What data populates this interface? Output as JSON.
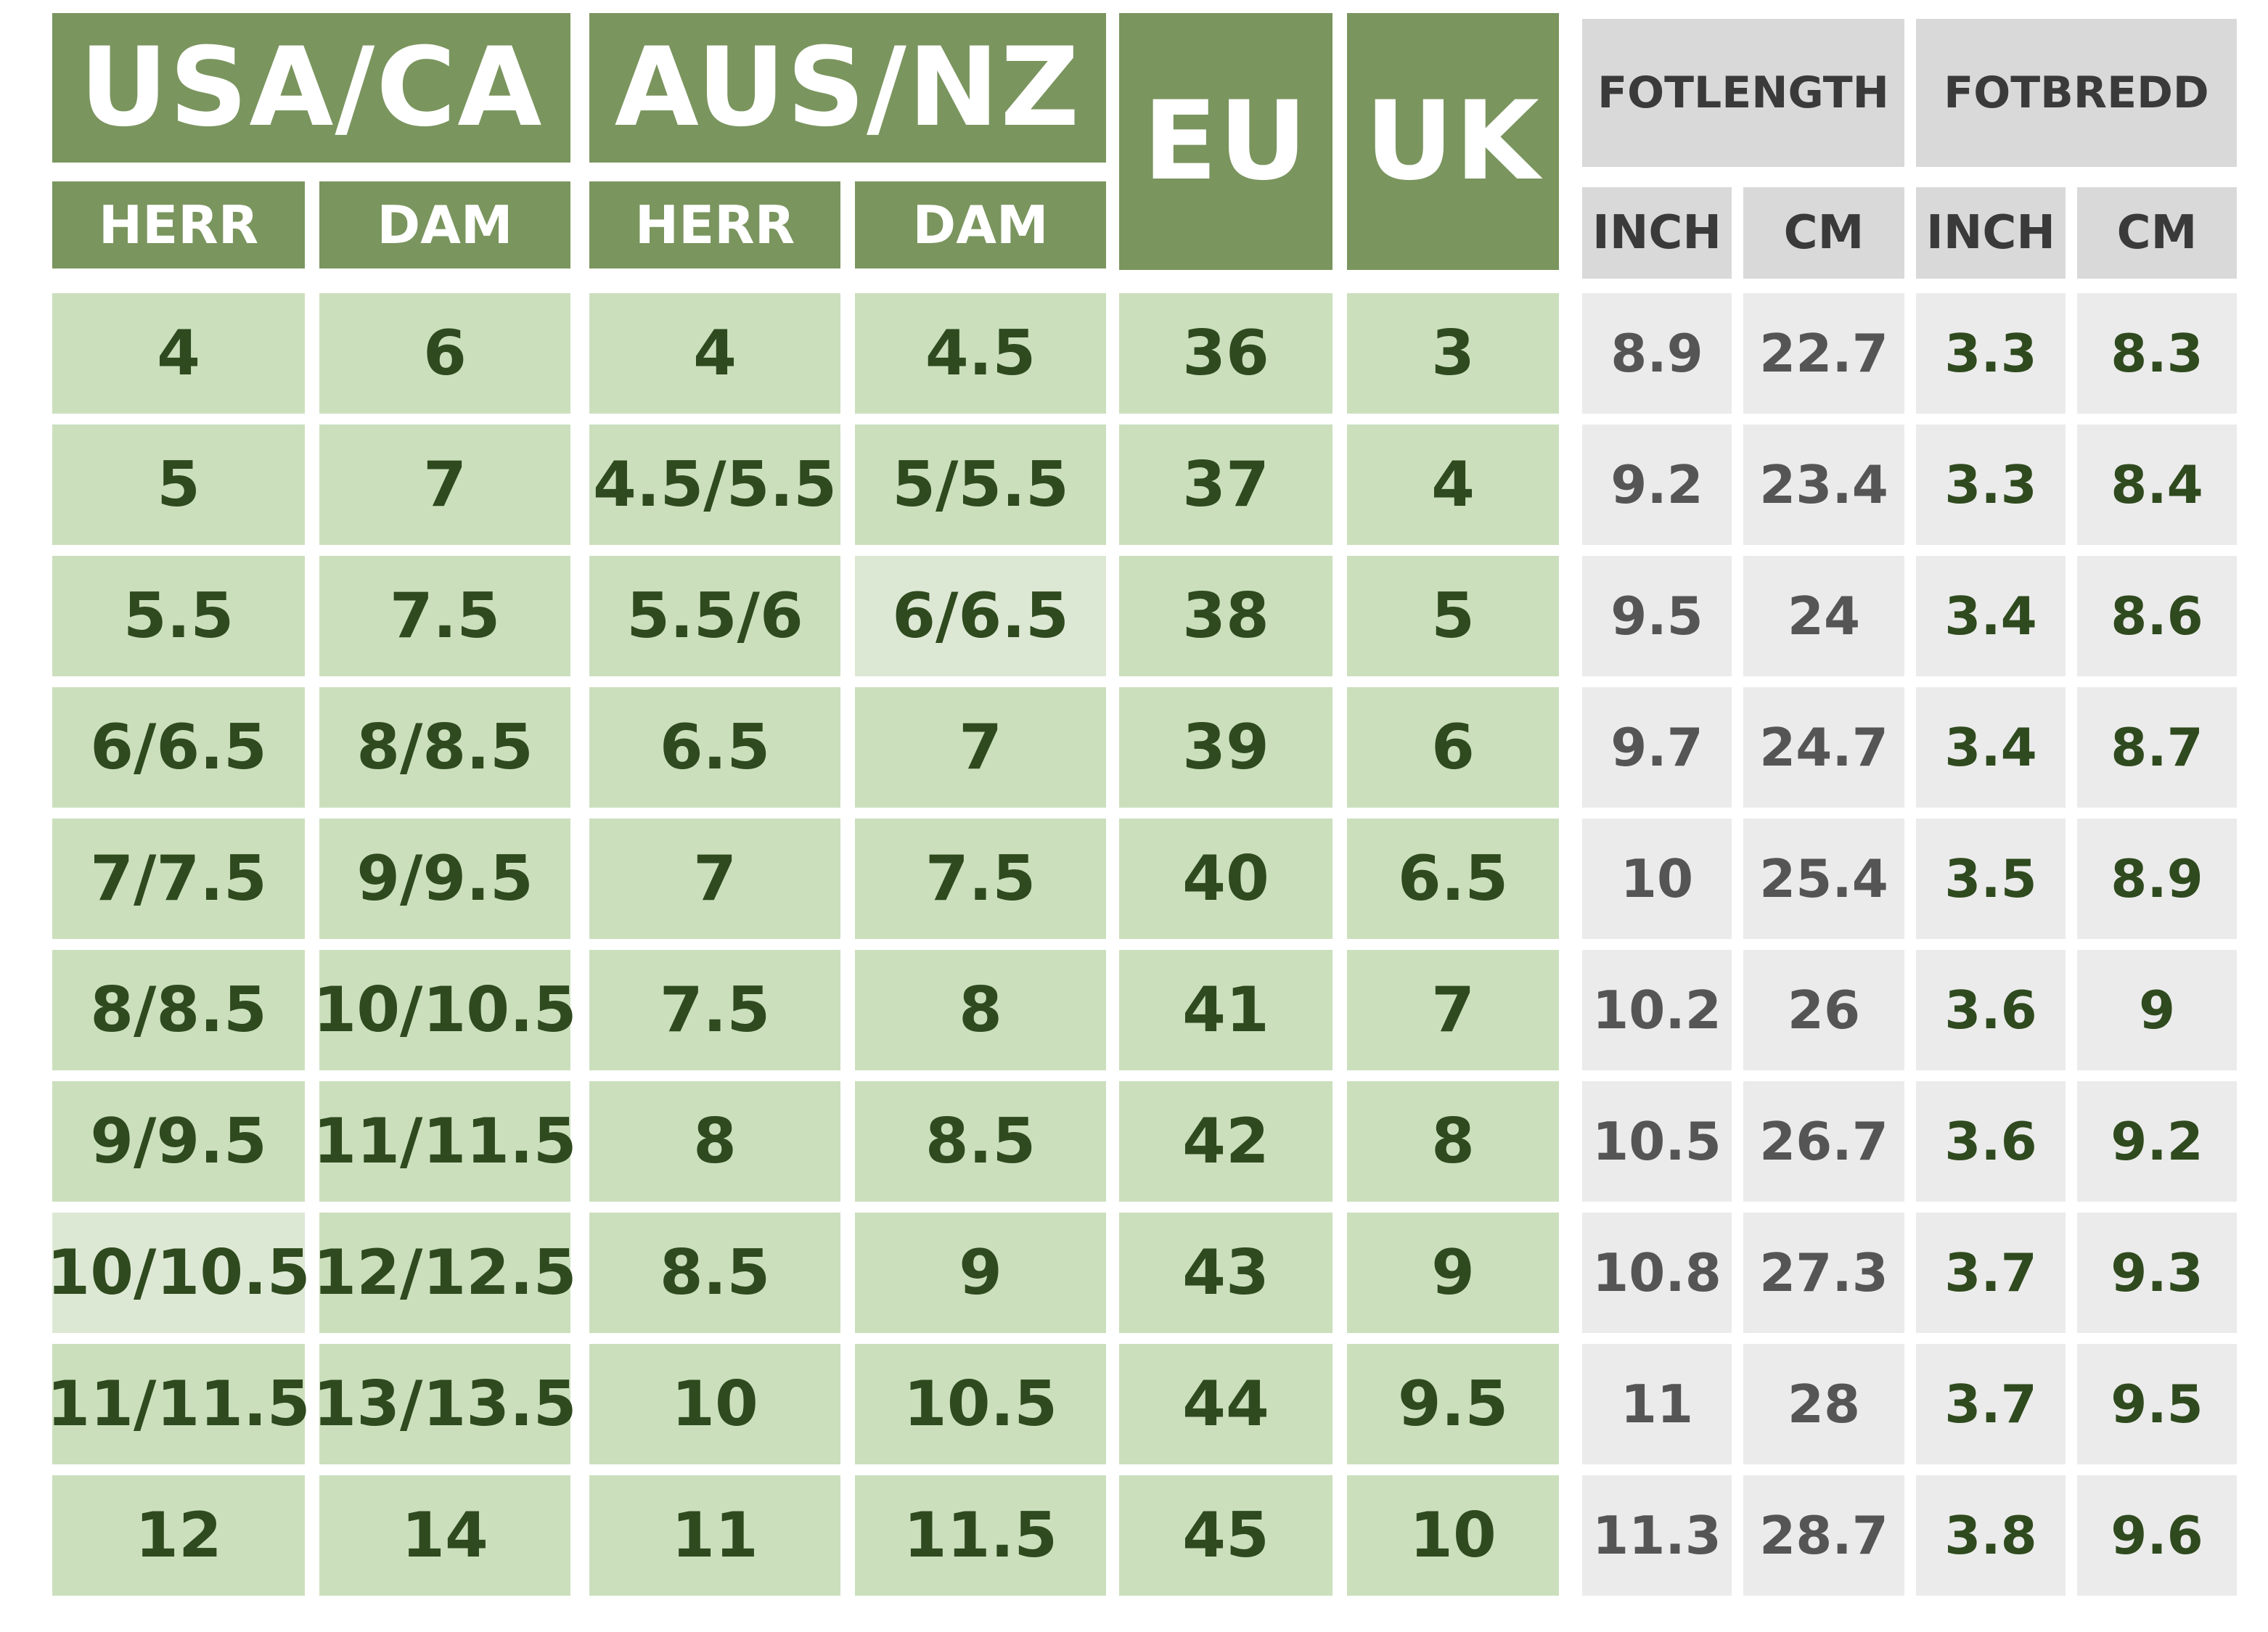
{
  "headers": {
    "usa_ca": "USA/CA",
    "aus_nz": "AUS/NZ",
    "eu": "EU",
    "uk": "UK",
    "fotlength": "FOTLENGTH",
    "fotbredd": "FOTBREDD",
    "herr": "HERR",
    "dam": "DAM",
    "inch": "INCH",
    "cm": "CM"
  },
  "colors": {
    "header_green": "#7a955e",
    "cell_green": "#cbdfbd",
    "text_green": "#2f4a1e",
    "header_gray": "#d9d9d9",
    "cell_gray": "#ebebeb"
  },
  "rows": [
    {
      "usa_herr": "4",
      "usa_dam": "6",
      "aus_herr": "4",
      "aus_dam": "4.5",
      "eu": "36",
      "uk": "3",
      "len_inch": "8.9",
      "len_cm": "22.7",
      "width_inch": "3.3",
      "width_cm": "8.3"
    },
    {
      "usa_herr": "5",
      "usa_dam": "7",
      "aus_herr": "4.5/5.5",
      "aus_dam": "5/5.5",
      "eu": "37",
      "uk": "4",
      "len_inch": "9.2",
      "len_cm": "23.4",
      "width_inch": "3.3",
      "width_cm": "8.4"
    },
    {
      "usa_herr": "5.5",
      "usa_dam": "7.5",
      "aus_herr": "5.5/6",
      "aus_dam": "6/6.5",
      "eu": "38",
      "uk": "5",
      "len_inch": "9.5",
      "len_cm": "24",
      "width_inch": "3.4",
      "width_cm": "8.6"
    },
    {
      "usa_herr": "6/6.5",
      "usa_dam": "8/8.5",
      "aus_herr": "6.5",
      "aus_dam": "7",
      "eu": "39",
      "uk": "6",
      "len_inch": "9.7",
      "len_cm": "24.7",
      "width_inch": "3.4",
      "width_cm": "8.7"
    },
    {
      "usa_herr": "7/7.5",
      "usa_dam": "9/9.5",
      "aus_herr": "7",
      "aus_dam": "7.5",
      "eu": "40",
      "uk": "6.5",
      "len_inch": "10",
      "len_cm": "25.4",
      "width_inch": "3.5",
      "width_cm": "8.9"
    },
    {
      "usa_herr": "8/8.5",
      "usa_dam": "10/10.5",
      "aus_herr": "7.5",
      "aus_dam": "8",
      "eu": "41",
      "uk": "7",
      "len_inch": "10.2",
      "len_cm": "26",
      "width_inch": "3.6",
      "width_cm": "9"
    },
    {
      "usa_herr": "9/9.5",
      "usa_dam": "11/11.5",
      "aus_herr": "8",
      "aus_dam": "8.5",
      "eu": "42",
      "uk": "8",
      "len_inch": "10.5",
      "len_cm": "26.7",
      "width_inch": "3.6",
      "width_cm": "9.2"
    },
    {
      "usa_herr": "10/10.5",
      "usa_dam": "12/12.5",
      "aus_herr": "8.5",
      "aus_dam": "9",
      "eu": "43",
      "uk": "9",
      "len_inch": "10.8",
      "len_cm": "27.3",
      "width_inch": "3.7",
      "width_cm": "9.3"
    },
    {
      "usa_herr": "11/11.5",
      "usa_dam": "13/13.5",
      "aus_herr": "10",
      "aus_dam": "10.5",
      "eu": "44",
      "uk": "9.5",
      "len_inch": "11",
      "len_cm": "28",
      "width_inch": "3.7",
      "width_cm": "9.5"
    },
    {
      "usa_herr": "12",
      "usa_dam": "14",
      "aus_herr": "11",
      "aus_dam": "11.5",
      "eu": "45",
      "uk": "10",
      "len_inch": "11.3",
      "len_cm": "28.7",
      "width_inch": "3.8",
      "width_cm": "9.6"
    }
  ]
}
